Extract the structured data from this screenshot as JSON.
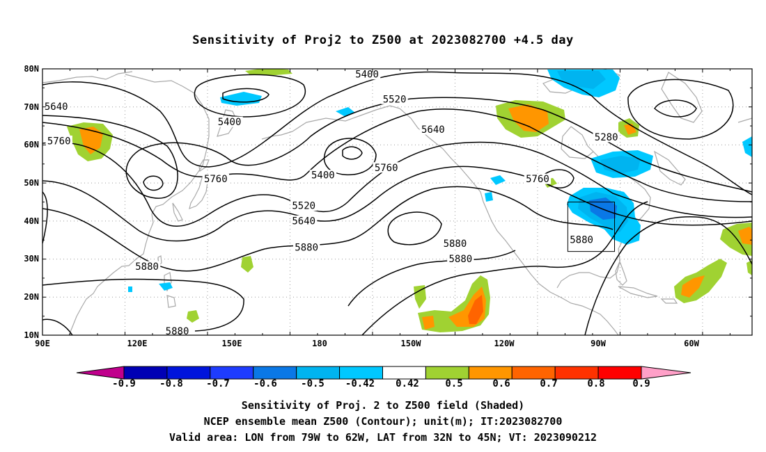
{
  "title": "Sensitivity of Proj2 to Z500 at 2023082700 +4.5 day",
  "lat_labels": [
    "80N",
    "70N",
    "60N",
    "50N",
    "40N",
    "30N",
    "20N",
    "10N"
  ],
  "lon_labels": [
    "90E",
    "120E",
    "150E",
    "180",
    "150W",
    "120W",
    "90W",
    "60W"
  ],
  "contour_labels": [
    {
      "text": "5400",
      "lon": -152,
      "lat": 78.5
    },
    {
      "text": "5400",
      "lon": 158,
      "lat": 66
    },
    {
      "text": "5400",
      "lon": -168,
      "lat": 52
    },
    {
      "text": "5520",
      "lon": -142,
      "lat": 72
    },
    {
      "text": "5640",
      "lon": 95,
      "lat": 70
    },
    {
      "text": "5640",
      "lon": -128,
      "lat": 64
    },
    {
      "text": "5640",
      "lon": -175,
      "lat": 40
    },
    {
      "text": "5760",
      "lon": 96,
      "lat": 61
    },
    {
      "text": "5760",
      "lon": 153,
      "lat": 51
    },
    {
      "text": "5760",
      "lon": -145,
      "lat": 54
    },
    {
      "text": "5760",
      "lon": -90,
      "lat": 51
    },
    {
      "text": "5520",
      "lon": -175,
      "lat": 44
    },
    {
      "text": "5880",
      "lon": -174,
      "lat": 33
    },
    {
      "text": "5880",
      "lon": -120,
      "lat": 34
    },
    {
      "text": "5880",
      "lon": -118,
      "lat": 30
    },
    {
      "text": "5880",
      "lon": -74,
      "lat": 35
    },
    {
      "text": "5880",
      "lon": 128,
      "lat": 28
    },
    {
      "text": "5880",
      "lon": 139,
      "lat": 11
    },
    {
      "text": "5280",
      "lon": -65,
      "lat": 62
    }
  ],
  "valid_box": {
    "lon_min": -79,
    "lon_max": -62,
    "lat_min": 32,
    "lat_max": 45
  },
  "colorbar": {
    "labels": [
      "-0.9",
      "-0.8",
      "-0.7",
      "-0.6",
      "-0.5",
      "-0.42",
      "0.42",
      "0.5",
      "0.6",
      "0.7",
      "0.8",
      "0.9"
    ],
    "colors": [
      "#c0008c",
      "#0000b4",
      "#0014dc",
      "#1e3cff",
      "#0a78e6",
      "#00b4f0",
      "#00c8ff",
      "#ffffff",
      "#a0d232",
      "#ff9600",
      "#ff6400",
      "#ff3200",
      "#ff0000",
      "#ffa0c8"
    ]
  },
  "captions": [
    "Sensitivity of Proj. 2 to Z500 field (Shaded)",
    "NCEP ensemble mean Z500 (Contour); unit(m); IT:2023082700",
    "Valid area: LON from 79W to 62W, LAT from 32N to 45N; VT: 2023090212"
  ]
}
